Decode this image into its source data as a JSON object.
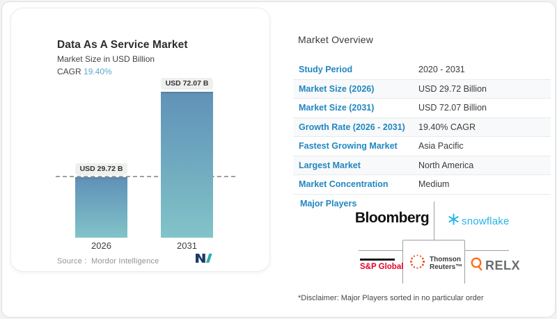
{
  "chart_card": {
    "title": "Data As A Service Market",
    "subtitle": "Market Size in USD Billion",
    "cagr_label": "CAGR",
    "cagr_value": "19.40%",
    "source_label": "Source :",
    "source_value": "Mordor Intelligence"
  },
  "chart_data": {
    "type": "bar",
    "title": "Data As A Service Market",
    "unit": "USD Billion",
    "categories": [
      "2026",
      "2031"
    ],
    "values": [
      29.72,
      72.07
    ],
    "bar_labels": [
      "USD 29.72 B",
      "USD 72.07 B"
    ],
    "ylim": [
      0,
      72.07
    ],
    "reference_line_at": 29.72,
    "bar_gradient": [
      "#6193b8",
      "#82c4c8"
    ],
    "legend": "none",
    "grid": "off"
  },
  "overview": {
    "title": "Market Overview",
    "label_color": "#2287c0",
    "rows": [
      {
        "label": "Study Period",
        "value": "2020 - 2031"
      },
      {
        "label": "Market Size (2026)",
        "value": "USD 29.72 Billion"
      },
      {
        "label": "Market Size (2031)",
        "value": "USD 72.07 Billion"
      },
      {
        "label": "Growth Rate (2026 - 2031)",
        "value": "19.40% CAGR"
      },
      {
        "label": "Fastest Growing Market",
        "value": "Asia Pacific"
      },
      {
        "label": "Largest Market",
        "value": "North America"
      },
      {
        "label": "Market Concentration",
        "value": "Medium"
      }
    ]
  },
  "major_players": {
    "label": "Major Players",
    "bloomberg": "Bloomberg",
    "snowflake": "snowflake",
    "sp_global": "S&P Global",
    "thomson_line1": "Thomson",
    "thomson_line2": "Reuters™",
    "relx": "RELX",
    "snowflake_color": "#29b5e8",
    "sp_color": "#e4002b",
    "thomson_accent": "#f05023",
    "relx_accent": "#ff6a13"
  },
  "disclaimer": "*Disclaimer: Major Players sorted in no particular order"
}
